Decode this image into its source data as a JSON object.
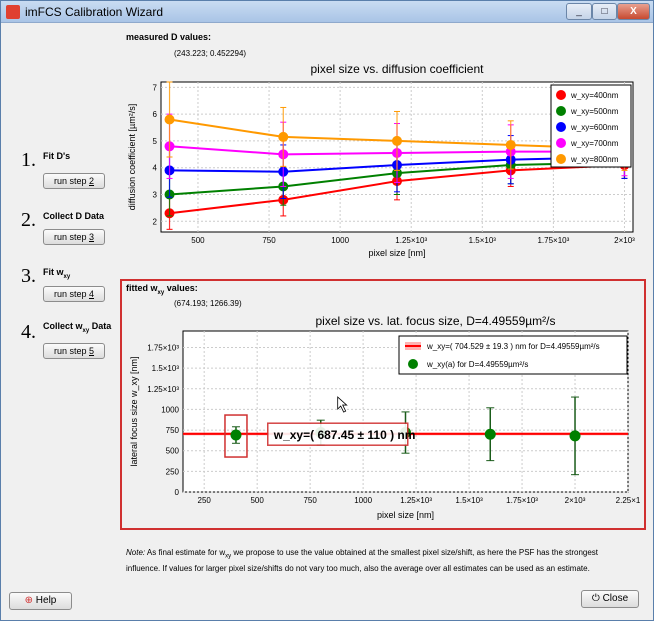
{
  "window": {
    "title": "imFCS Calibration Wizard",
    "min": "_",
    "max": "□",
    "close": "X"
  },
  "steps": [
    {
      "num": "1.",
      "label": "Fit D's",
      "button": "run step 2"
    },
    {
      "num": "2.",
      "label": "Collect D Data",
      "button": "run step 3"
    },
    {
      "num": "3.",
      "label": "Fit w_xy",
      "button": "run step 4"
    },
    {
      "num": "4.",
      "label": "Collect w_xy Data",
      "button": "run step 5"
    }
  ],
  "top_section": {
    "label": "measured D values:",
    "values": "(243.223; 0.452294)"
  },
  "bottom_section": {
    "label": "fitted w_xy values:",
    "values": "(674.193; 1266.39)"
  },
  "chart_data": [
    {
      "type": "line",
      "title": "pixel size vs. diffusion coefficient",
      "xlabel": "pixel size [nm]",
      "ylabel": "diffusion coefficient [µm²/s]",
      "xlim": [
        370,
        2030
      ],
      "ylim": [
        1.6,
        7.2
      ],
      "xticks": [
        "500",
        "750",
        "1000",
        "1.25×10³",
        "1.5×10³",
        "1.75×10³",
        "2×10³"
      ],
      "yticks": [
        "2",
        "3",
        "4",
        "5",
        "6",
        "7"
      ],
      "legend_position": "top-right",
      "x": [
        400,
        800,
        1200,
        1600,
        2000
      ],
      "series": [
        {
          "name": "w_xy=400nm",
          "color": "#ff0000",
          "values": [
            2.3,
            2.8,
            3.5,
            3.9,
            4.1
          ],
          "err": [
            0.6,
            0.6,
            0.7,
            0.6,
            0.5
          ]
        },
        {
          "name": "w_xy=500nm",
          "color": "#008000",
          "values": [
            3.0,
            3.3,
            3.8,
            4.1,
            4.2
          ],
          "err": [
            0.8,
            0.7,
            0.8,
            0.7,
            0.6
          ]
        },
        {
          "name": "w_xy=600nm",
          "color": "#0000ff",
          "values": [
            3.9,
            3.85,
            4.1,
            4.3,
            4.4
          ],
          "err": [
            1.0,
            1.0,
            1.0,
            0.9,
            0.8
          ]
        },
        {
          "name": "w_xy=700nm",
          "color": "#ff00ff",
          "values": [
            4.8,
            4.5,
            4.55,
            4.6,
            4.6
          ],
          "err": [
            1.2,
            1.2,
            1.1,
            1.0,
            0.9
          ]
        },
        {
          "name": "w_xy=800nm",
          "color": "#ff9900",
          "values": [
            5.8,
            5.15,
            5.0,
            4.85,
            4.7
          ],
          "err": [
            1.4,
            1.1,
            1.1,
            0.9,
            0.8
          ]
        }
      ]
    },
    {
      "type": "scatter",
      "title": "pixel size vs. lat. focus size, D=4.49559µm²/s",
      "xlabel": "pixel size [nm]",
      "ylabel": "lateral focus size w_xy [nm]",
      "xlim": [
        150,
        2250
      ],
      "ylim": [
        0,
        1950
      ],
      "xticks": [
        "250",
        "500",
        "750",
        "1000",
        "1.25×10³",
        "1.5×10³",
        "1.75×10³",
        "2×10³",
        "2.25×1"
      ],
      "yticks": [
        "0",
        "250",
        "500",
        "750",
        "1000",
        "1.25×10³",
        "1.5×10³",
        "1.75×10³"
      ],
      "legend_position": "top-right",
      "legend": [
        "w_xy=( 704.529 ± 19.3 ) nm for D=4.49559µm²/s",
        "w_xy(a) for D=4.49559µm²/s"
      ],
      "fit_line": {
        "value": 704.529,
        "err": 19.3,
        "color": "#ff0000"
      },
      "points": {
        "x": [
          400,
          800,
          1200,
          1600,
          2000
        ],
        "y": [
          690,
          720,
          720,
          700,
          680
        ],
        "err": [
          100,
          150,
          250,
          320,
          470
        ],
        "color": "#008000"
      },
      "annotation": "w_xy=( 687.45 ± 110 ) nm"
    }
  ],
  "note": "Note: As final estimate for w_xy we propose to use the value obtained at the smallest pixel size/shift, as here the PSF has the strongest influence. If values for larger pixel size/shifts do not vary too much, also the average over all estimates can be used as an estimate.",
  "help_button": "Help",
  "close_button": "Close"
}
